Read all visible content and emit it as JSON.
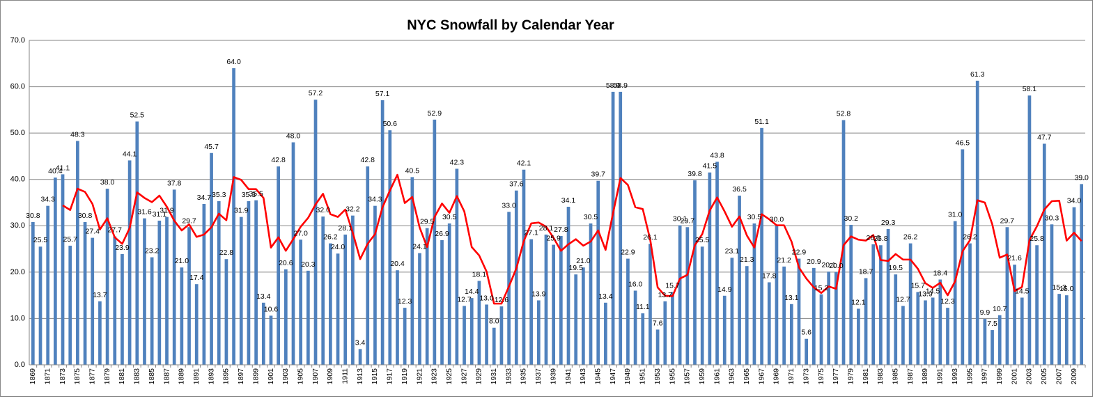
{
  "chart_data": {
    "type": "bar",
    "title": "NYC Snowfall by Calendar Year",
    "categories": [
      "1869",
      null,
      "1871",
      null,
      "1873",
      null,
      "1875",
      null,
      "1877",
      null,
      "1879",
      null,
      "1881",
      null,
      "1883",
      null,
      "1885",
      null,
      "1887",
      null,
      "1889",
      null,
      "1891",
      null,
      "1893",
      null,
      "1895",
      null,
      "1897",
      null,
      "1899",
      null,
      "1901",
      null,
      "1903",
      null,
      "1905",
      null,
      "1907",
      null,
      "1909",
      null,
      "1911",
      null,
      "1913",
      null,
      "1915",
      null,
      "1917",
      null,
      "1919",
      null,
      "1921",
      null,
      "1923",
      null,
      "1925",
      null,
      "1927",
      null,
      "1929",
      null,
      "1931",
      null,
      "1933",
      null,
      "1935",
      null,
      "1937",
      null,
      "1939",
      null,
      "1941",
      null,
      "1943",
      null,
      "1945",
      null,
      "1947",
      null,
      "1949",
      null,
      "1951",
      null,
      "1953",
      null,
      "1955",
      null,
      "1957",
      null,
      "1959",
      null,
      "1961",
      null,
      "1963",
      null,
      "1965",
      null,
      "1967",
      null,
      "1969",
      null,
      "1971",
      null,
      "1973",
      null,
      "1975",
      null,
      "1977",
      null,
      "1979",
      null,
      "1981",
      null,
      "1983",
      null,
      "1985",
      null,
      "1987",
      null,
      "1989",
      null,
      "1991",
      null,
      "1993",
      null,
      "1995",
      null,
      "1997",
      null,
      "1999",
      null,
      "2001",
      null,
      "2003",
      null,
      "2005",
      null,
      "2007",
      null,
      "2009",
      null
    ],
    "series": [
      {
        "type": "bar",
        "color": "#4f81bd",
        "values": [
          30.8,
          25.5,
          34.3,
          40.4,
          41.1,
          25.7,
          48.3,
          30.8,
          27.4,
          13.7,
          38.0,
          27.7,
          23.9,
          44.1,
          52.5,
          31.6,
          23.2,
          31.1,
          31.9,
          37.8,
          21.0,
          29.7,
          17.4,
          34.7,
          45.7,
          35.3,
          22.8,
          64.0,
          31.9,
          35.3,
          35.5,
          13.4,
          10.6,
          42.8,
          20.6,
          48.0,
          27.0,
          20.3,
          57.2,
          32.0,
          26.2,
          24.0,
          28.1,
          32.2,
          3.4,
          42.8,
          34.3,
          57.1,
          50.6,
          20.4,
          12.3,
          40.5,
          24.1,
          29.5,
          52.9,
          26.9,
          30.5,
          42.3,
          12.7,
          14.4,
          18.1,
          13.0,
          8.0,
          12.6,
          33.0,
          37.6,
          42.1,
          27.1,
          13.9,
          28.1,
          25.9,
          27.8,
          34.1,
          19.5,
          21.0,
          30.5,
          39.7,
          13.4,
          58.9,
          58.9,
          22.9,
          16.0,
          11.1,
          26.1,
          7.6,
          13.7,
          15.7,
          30.1,
          29.7,
          39.8,
          25.5,
          41.5,
          43.8,
          14.9,
          23.1,
          36.5,
          21.3,
          30.5,
          51.1,
          17.8,
          30.0,
          21.2,
          13.1,
          22.9,
          5.6,
          20.9,
          15.2,
          20.1,
          20.0,
          52.8,
          30.2,
          12.1,
          18.7,
          26.0,
          25.8,
          29.3,
          19.5,
          12.7,
          26.2,
          15.7,
          13.9,
          14.5,
          18.4,
          12.3,
          31.0,
          46.5,
          26.2,
          61.3,
          9.9,
          7.5,
          10.7,
          29.7,
          21.6,
          14.5,
          58.1,
          25.8,
          47.7,
          30.3,
          15.3,
          15.0,
          34.0,
          39.0
        ],
        "value_labels": [
          "30.8",
          "25.5",
          "34.3",
          "40.4",
          "41.1",
          "25.7",
          "48.3",
          "30.8",
          "27.4",
          "13.7",
          "38.0",
          "27.7",
          "23.9",
          "44.1",
          "52.5",
          "31.6",
          "23.2",
          "31.1",
          "31.9",
          "37.8",
          "21.0",
          "29.7",
          "17.4",
          "34.7",
          "45.7",
          "35.3",
          "22.8",
          "64.0",
          "31.9",
          "35.3",
          "35.5",
          "13.4",
          "10.6",
          "42.8",
          "20.6",
          "48.0",
          "27.0",
          "20.3",
          "57.2",
          "32.0",
          "26.2",
          "24.0",
          "28.1",
          "32.2",
          "3.4",
          "42.8",
          "34.3",
          "57.1",
          "50.6",
          "20.4",
          "12.3",
          "40.5",
          "24.1",
          "29.5",
          "52.9",
          "26.9",
          "30.5",
          "42.3",
          "12.7",
          "14.4",
          "18.1",
          "13.0",
          "8.0",
          "12.6",
          "33.0",
          "37.6",
          "42.1",
          "27.1",
          "13.9",
          "28.1",
          "25.9",
          "27.8",
          "34.1",
          "19.5",
          "21.0",
          "30.5",
          "39.7",
          "13.4",
          "58.9",
          "58.9",
          "22.9",
          "16.0",
          "11.1",
          "26.1",
          "7.6",
          "13.7",
          "15.7",
          "30.1",
          "29.7",
          "39.8",
          "25.5",
          "41.5",
          "43.8",
          "14.9",
          "23.1",
          "36.5",
          "21.3",
          "30.5",
          "51.1",
          "17.8",
          "30.0",
          "21.2",
          "13.1",
          "22.9",
          "5.6",
          "20.9",
          "15.2",
          "20.1",
          "20.0",
          "52.8",
          "30.2",
          "12.1",
          "18.7",
          "26.0",
          "25.8",
          "29.3",
          "19.5",
          "12.7",
          "26.2",
          "15.7",
          "13.9",
          "14.5",
          "18.4",
          "12.3",
          "31.0",
          "46.5",
          "26.2",
          "61.3",
          "9.9",
          "7.5",
          "10.7",
          "29.7",
          "21.6",
          "14.5",
          "58.1",
          "25.8",
          "47.7",
          "30.3",
          "15.3",
          "15.0",
          "34.0",
          "39.0"
        ]
      },
      {
        "type": "line",
        "color": "#ff0000",
        "values": [
          null,
          null,
          null,
          null,
          34.4,
          33.4,
          38.0,
          37.3,
          34.7,
          29.2,
          31.6,
          27.5,
          26.1,
          29.5,
          37.2,
          36.0,
          35.1,
          36.5,
          34.1,
          31.1,
          29.0,
          30.3,
          27.6,
          28.1,
          29.7,
          32.6,
          31.2,
          40.5,
          39.9,
          37.9,
          37.9,
          36.0,
          25.3,
          27.5,
          24.6,
          27.1,
          29.8,
          31.7,
          34.6,
          36.9,
          32.5,
          31.9,
          33.5,
          28.5,
          22.8,
          26.1,
          28.2,
          34.0,
          37.6,
          41.0,
          34.9,
          36.2,
          29.6,
          25.4,
          31.9,
          34.8,
          32.8,
          36.4,
          33.1,
          25.4,
          23.6,
          20.1,
          13.2,
          13.2,
          16.9,
          20.8,
          26.7,
          30.5,
          30.7,
          29.8,
          27.4,
          24.6,
          26.0,
          27.1,
          25.7,
          26.6,
          29.0,
          24.8,
          32.7,
          40.3,
          38.8,
          34.0,
          33.6,
          27.0,
          16.7,
          14.9,
          14.8,
          18.6,
          19.4,
          25.8,
          28.2,
          33.3,
          36.1,
          33.1,
          29.8,
          32.0,
          27.9,
          25.3,
          32.5,
          31.4,
          30.1,
          30.1,
          26.6,
          21.0,
          18.6,
          16.7,
          15.5,
          16.9,
          16.4,
          25.8,
          27.7,
          27.0,
          26.8,
          28.0,
          22.6,
          22.4,
          23.9,
          22.7,
          22.7,
          20.7,
          17.6,
          16.6,
          17.7,
          15.0,
          18.0,
          24.5,
          26.9,
          35.5,
          35.0,
          30.3,
          23.1,
          23.8,
          15.9,
          16.8,
          26.9,
          29.9,
          33.5,
          35.3,
          35.4,
          26.8,
          28.5,
          26.7
        ]
      }
    ],
    "ylim": [
      0,
      70
    ],
    "yticks": [
      {
        "value": 0,
        "label": "0.0"
      },
      {
        "value": 10,
        "label": "10.0"
      },
      {
        "value": 20,
        "label": "20.0"
      },
      {
        "value": 30,
        "label": "30.0"
      },
      {
        "value": 40,
        "label": "40.0"
      },
      {
        "value": 50,
        "label": "50.0"
      },
      {
        "value": 60,
        "label": "60.0"
      },
      {
        "value": 70,
        "label": "70.0"
      }
    ],
    "grid": true
  }
}
